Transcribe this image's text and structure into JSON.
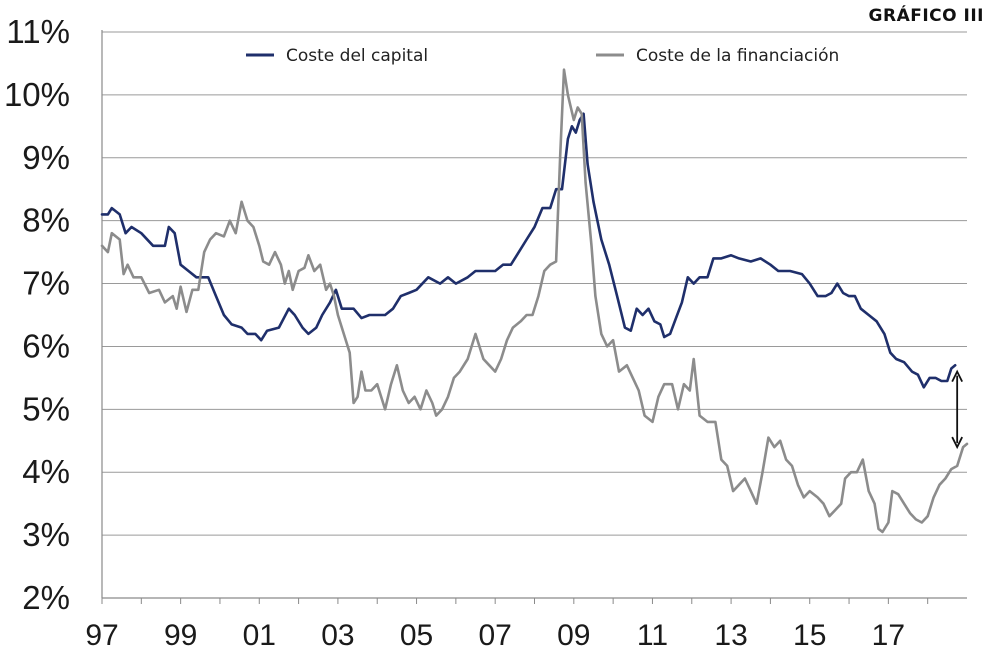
{
  "chart_label": "GRÁFICO III",
  "chart_data": {
    "type": "line",
    "title": "",
    "xlabel": "",
    "ylabel": "",
    "ylim": [
      2,
      11
    ],
    "xlim": [
      1997,
      2019
    ],
    "y_ticks": [
      "2%",
      "3%",
      "4%",
      "5%",
      "6%",
      "7%",
      "8%",
      "9%",
      "10%",
      "11%"
    ],
    "y_tick_values": [
      2,
      3,
      4,
      5,
      6,
      7,
      8,
      9,
      10,
      11
    ],
    "x_ticks": [
      "97",
      "99",
      "01",
      "03",
      "05",
      "07",
      "09",
      "11",
      "13",
      "15",
      "17"
    ],
    "x_tick_values": [
      1997,
      1999,
      2001,
      2003,
      2005,
      2007,
      2009,
      2011,
      2013,
      2015,
      2017
    ],
    "grid": "horizontal",
    "legend_placement": "top-center",
    "annotation": "double-headed arrow marking the gap between the two series at the end of the period",
    "annotation_range": {
      "x": 2018.75,
      "y_from": 5.6,
      "y_to": 4.4
    },
    "series": [
      {
        "name": "Coste del capital",
        "color": "#1f2f6b",
        "points": [
          [
            1997.0,
            8.1
          ],
          [
            1997.15,
            8.1
          ],
          [
            1997.25,
            8.2
          ],
          [
            1997.45,
            8.1
          ],
          [
            1997.6,
            7.8
          ],
          [
            1997.75,
            7.9
          ],
          [
            1998.0,
            7.8
          ],
          [
            1998.3,
            7.6
          ],
          [
            1998.6,
            7.6
          ],
          [
            1998.7,
            7.9
          ],
          [
            1998.85,
            7.8
          ],
          [
            1999.0,
            7.3
          ],
          [
            1999.2,
            7.2
          ],
          [
            1999.4,
            7.1
          ],
          [
            1999.7,
            7.1
          ],
          [
            1999.9,
            6.8
          ],
          [
            2000.1,
            6.5
          ],
          [
            2000.3,
            6.35
          ],
          [
            2000.55,
            6.3
          ],
          [
            2000.7,
            6.2
          ],
          [
            2000.9,
            6.2
          ],
          [
            2001.05,
            6.1
          ],
          [
            2001.2,
            6.25
          ],
          [
            2001.5,
            6.3
          ],
          [
            2001.75,
            6.6
          ],
          [
            2001.9,
            6.5
          ],
          [
            2002.1,
            6.3
          ],
          [
            2002.25,
            6.2
          ],
          [
            2002.45,
            6.3
          ],
          [
            2002.6,
            6.5
          ],
          [
            2002.8,
            6.7
          ],
          [
            2002.95,
            6.9
          ],
          [
            2003.1,
            6.6
          ],
          [
            2003.4,
            6.6
          ],
          [
            2003.6,
            6.45
          ],
          [
            2003.8,
            6.5
          ],
          [
            2004.0,
            6.5
          ],
          [
            2004.2,
            6.5
          ],
          [
            2004.4,
            6.6
          ],
          [
            2004.6,
            6.8
          ],
          [
            2004.8,
            6.85
          ],
          [
            2005.0,
            6.9
          ],
          [
            2005.3,
            7.1
          ],
          [
            2005.6,
            7.0
          ],
          [
            2005.8,
            7.1
          ],
          [
            2006.0,
            7.0
          ],
          [
            2006.3,
            7.1
          ],
          [
            2006.5,
            7.2
          ],
          [
            2006.8,
            7.2
          ],
          [
            2007.0,
            7.2
          ],
          [
            2007.2,
            7.3
          ],
          [
            2007.4,
            7.3
          ],
          [
            2007.6,
            7.5
          ],
          [
            2007.8,
            7.7
          ],
          [
            2008.0,
            7.9
          ],
          [
            2008.2,
            8.2
          ],
          [
            2008.4,
            8.2
          ],
          [
            2008.55,
            8.5
          ],
          [
            2008.7,
            8.5
          ],
          [
            2008.85,
            9.3
          ],
          [
            2008.95,
            9.5
          ],
          [
            2009.05,
            9.4
          ],
          [
            2009.15,
            9.6
          ],
          [
            2009.25,
            9.7
          ],
          [
            2009.35,
            8.9
          ],
          [
            2009.5,
            8.3
          ],
          [
            2009.7,
            7.7
          ],
          [
            2009.9,
            7.3
          ],
          [
            2010.1,
            6.8
          ],
          [
            2010.3,
            6.3
          ],
          [
            2010.45,
            6.25
          ],
          [
            2010.6,
            6.6
          ],
          [
            2010.75,
            6.5
          ],
          [
            2010.9,
            6.6
          ],
          [
            2011.05,
            6.4
          ],
          [
            2011.2,
            6.35
          ],
          [
            2011.3,
            6.15
          ],
          [
            2011.45,
            6.2
          ],
          [
            2011.6,
            6.45
          ],
          [
            2011.75,
            6.7
          ],
          [
            2011.9,
            7.1
          ],
          [
            2012.05,
            7.0
          ],
          [
            2012.2,
            7.1
          ],
          [
            2012.4,
            7.1
          ],
          [
            2012.55,
            7.4
          ],
          [
            2012.75,
            7.4
          ],
          [
            2013.0,
            7.45
          ],
          [
            2013.2,
            7.4
          ],
          [
            2013.5,
            7.35
          ],
          [
            2013.75,
            7.4
          ],
          [
            2014.0,
            7.3
          ],
          [
            2014.2,
            7.2
          ],
          [
            2014.5,
            7.2
          ],
          [
            2014.8,
            7.15
          ],
          [
            2015.0,
            7.0
          ],
          [
            2015.2,
            6.8
          ],
          [
            2015.4,
            6.8
          ],
          [
            2015.55,
            6.85
          ],
          [
            2015.7,
            7.0
          ],
          [
            2015.85,
            6.85
          ],
          [
            2016.0,
            6.8
          ],
          [
            2016.15,
            6.8
          ],
          [
            2016.3,
            6.6
          ],
          [
            2016.5,
            6.5
          ],
          [
            2016.7,
            6.4
          ],
          [
            2016.9,
            6.2
          ],
          [
            2017.05,
            5.9
          ],
          [
            2017.2,
            5.8
          ],
          [
            2017.4,
            5.75
          ],
          [
            2017.6,
            5.6
          ],
          [
            2017.75,
            5.55
          ],
          [
            2017.9,
            5.35
          ],
          [
            2018.05,
            5.5
          ],
          [
            2018.2,
            5.5
          ],
          [
            2018.35,
            5.45
          ],
          [
            2018.5,
            5.45
          ],
          [
            2018.6,
            5.65
          ],
          [
            2018.7,
            5.7
          ]
        ]
      },
      {
        "name": "Coste de la financiación",
        "color": "#8c8c8c",
        "points": [
          [
            1997.0,
            7.6
          ],
          [
            1997.15,
            7.5
          ],
          [
            1997.25,
            7.8
          ],
          [
            1997.45,
            7.7
          ],
          [
            1997.55,
            7.15
          ],
          [
            1997.65,
            7.3
          ],
          [
            1997.8,
            7.1
          ],
          [
            1998.0,
            7.1
          ],
          [
            1998.2,
            6.85
          ],
          [
            1998.45,
            6.9
          ],
          [
            1998.6,
            6.7
          ],
          [
            1998.8,
            6.8
          ],
          [
            1998.9,
            6.6
          ],
          [
            1999.0,
            6.95
          ],
          [
            1999.15,
            6.55
          ],
          [
            1999.3,
            6.9
          ],
          [
            1999.45,
            6.9
          ],
          [
            1999.6,
            7.5
          ],
          [
            1999.75,
            7.7
          ],
          [
            1999.9,
            7.8
          ],
          [
            2000.1,
            7.75
          ],
          [
            2000.25,
            8.0
          ],
          [
            2000.4,
            7.8
          ],
          [
            2000.55,
            8.3
          ],
          [
            2000.7,
            8.0
          ],
          [
            2000.85,
            7.9
          ],
          [
            2001.0,
            7.6
          ],
          [
            2001.1,
            7.35
          ],
          [
            2001.25,
            7.3
          ],
          [
            2001.4,
            7.5
          ],
          [
            2001.55,
            7.3
          ],
          [
            2001.65,
            7.0
          ],
          [
            2001.75,
            7.2
          ],
          [
            2001.85,
            6.9
          ],
          [
            2002.0,
            7.2
          ],
          [
            2002.15,
            7.25
          ],
          [
            2002.25,
            7.45
          ],
          [
            2002.4,
            7.2
          ],
          [
            2002.55,
            7.3
          ],
          [
            2002.7,
            6.9
          ],
          [
            2002.8,
            7.0
          ],
          [
            2002.9,
            6.8
          ],
          [
            2003.0,
            6.5
          ],
          [
            2003.15,
            6.2
          ],
          [
            2003.3,
            5.9
          ],
          [
            2003.4,
            5.1
          ],
          [
            2003.5,
            5.2
          ],
          [
            2003.6,
            5.6
          ],
          [
            2003.7,
            5.3
          ],
          [
            2003.85,
            5.3
          ],
          [
            2004.0,
            5.4
          ],
          [
            2004.2,
            5.0
          ],
          [
            2004.35,
            5.4
          ],
          [
            2004.5,
            5.7
          ],
          [
            2004.65,
            5.3
          ],
          [
            2004.8,
            5.1
          ],
          [
            2004.95,
            5.2
          ],
          [
            2005.1,
            5.0
          ],
          [
            2005.25,
            5.3
          ],
          [
            2005.4,
            5.1
          ],
          [
            2005.5,
            4.9
          ],
          [
            2005.65,
            5.0
          ],
          [
            2005.8,
            5.2
          ],
          [
            2005.95,
            5.5
          ],
          [
            2006.1,
            5.6
          ],
          [
            2006.3,
            5.8
          ],
          [
            2006.5,
            6.2
          ],
          [
            2006.7,
            5.8
          ],
          [
            2006.85,
            5.7
          ],
          [
            2007.0,
            5.6
          ],
          [
            2007.15,
            5.8
          ],
          [
            2007.3,
            6.1
          ],
          [
            2007.45,
            6.3
          ],
          [
            2007.65,
            6.4
          ],
          [
            2007.8,
            6.5
          ],
          [
            2007.95,
            6.5
          ],
          [
            2008.1,
            6.8
          ],
          [
            2008.25,
            7.2
          ],
          [
            2008.4,
            7.3
          ],
          [
            2008.55,
            7.35
          ],
          [
            2008.65,
            9.0
          ],
          [
            2008.75,
            10.4
          ],
          [
            2008.85,
            10.0
          ],
          [
            2009.0,
            9.6
          ],
          [
            2009.1,
            9.8
          ],
          [
            2009.2,
            9.7
          ],
          [
            2009.3,
            8.6
          ],
          [
            2009.45,
            7.6
          ],
          [
            2009.55,
            6.8
          ],
          [
            2009.7,
            6.2
          ],
          [
            2009.85,
            6.0
          ],
          [
            2010.0,
            6.1
          ],
          [
            2010.15,
            5.6
          ],
          [
            2010.35,
            5.7
          ],
          [
            2010.5,
            5.5
          ],
          [
            2010.65,
            5.3
          ],
          [
            2010.8,
            4.9
          ],
          [
            2011.0,
            4.8
          ],
          [
            2011.15,
            5.2
          ],
          [
            2011.3,
            5.4
          ],
          [
            2011.5,
            5.4
          ],
          [
            2011.65,
            5.0
          ],
          [
            2011.8,
            5.4
          ],
          [
            2011.95,
            5.3
          ],
          [
            2012.05,
            5.8
          ],
          [
            2012.2,
            4.9
          ],
          [
            2012.4,
            4.8
          ],
          [
            2012.6,
            4.8
          ],
          [
            2012.75,
            4.2
          ],
          [
            2012.9,
            4.1
          ],
          [
            2013.05,
            3.7
          ],
          [
            2013.2,
            3.8
          ],
          [
            2013.35,
            3.9
          ],
          [
            2013.5,
            3.7
          ],
          [
            2013.65,
            3.5
          ],
          [
            2013.8,
            4.0
          ],
          [
            2013.95,
            4.55
          ],
          [
            2014.1,
            4.4
          ],
          [
            2014.25,
            4.5
          ],
          [
            2014.4,
            4.2
          ],
          [
            2014.55,
            4.1
          ],
          [
            2014.7,
            3.8
          ],
          [
            2014.85,
            3.6
          ],
          [
            2015.0,
            3.7
          ],
          [
            2015.2,
            3.6
          ],
          [
            2015.35,
            3.5
          ],
          [
            2015.5,
            3.3
          ],
          [
            2015.65,
            3.4
          ],
          [
            2015.8,
            3.5
          ],
          [
            2015.9,
            3.9
          ],
          [
            2016.05,
            4.0
          ],
          [
            2016.2,
            4.0
          ],
          [
            2016.35,
            4.2
          ],
          [
            2016.5,
            3.7
          ],
          [
            2016.65,
            3.5
          ],
          [
            2016.75,
            3.1
          ],
          [
            2016.85,
            3.05
          ],
          [
            2017.0,
            3.2
          ],
          [
            2017.1,
            3.7
          ],
          [
            2017.25,
            3.65
          ],
          [
            2017.4,
            3.5
          ],
          [
            2017.55,
            3.35
          ],
          [
            2017.7,
            3.25
          ],
          [
            2017.85,
            3.2
          ],
          [
            2018.0,
            3.3
          ],
          [
            2018.15,
            3.6
          ],
          [
            2018.3,
            3.8
          ],
          [
            2018.45,
            3.9
          ],
          [
            2018.6,
            4.05
          ],
          [
            2018.75,
            4.1
          ],
          [
            2018.9,
            4.4
          ],
          [
            2019.0,
            4.45
          ]
        ]
      }
    ]
  }
}
